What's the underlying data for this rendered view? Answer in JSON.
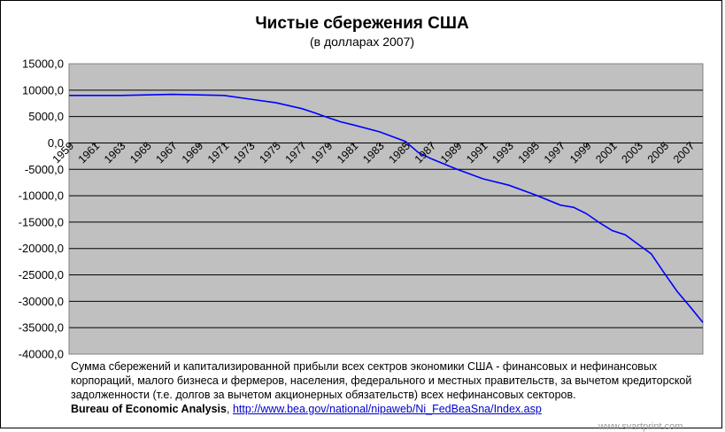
{
  "chart_data": {
    "type": "line",
    "title": "Чистые сбережения США",
    "subtitle": "(в долларах 2007)",
    "ylim": [
      -40000,
      15000
    ],
    "yticks": [
      "15000,0",
      "10000,0",
      "5000,0",
      "0,0",
      "-5000,0",
      "-10000,0",
      "-15000,0",
      "-20000,0",
      "-25000,0",
      "-30000,0",
      "-35000,0",
      "-40000,0"
    ],
    "ytick_values": [
      15000,
      10000,
      5000,
      0,
      -5000,
      -10000,
      -15000,
      -20000,
      -25000,
      -30000,
      -35000,
      -40000
    ],
    "xlim": [
      1959,
      2008
    ],
    "xticks": [
      "1959",
      "1961",
      "1963",
      "1965",
      "1967",
      "1969",
      "1971",
      "1973",
      "1975",
      "1977",
      "1979",
      "1981",
      "1983",
      "1985",
      "1987",
      "1989",
      "1991",
      "1993",
      "1995",
      "1997",
      "1999",
      "2001",
      "2003",
      "2005",
      "2007"
    ],
    "grid": true,
    "colors": {
      "plot_bg": "#c0c0c0",
      "line": "#0000ff",
      "grid": "#000000"
    },
    "series": [
      {
        "x": [
          1959,
          1961,
          1963,
          1965,
          1967,
          1969,
          1971,
          1973,
          1975,
          1977,
          1978,
          1979,
          1980,
          1981,
          1983,
          1985,
          1986,
          1987,
          1989,
          1991,
          1993,
          1995,
          1997,
          1998,
          1999,
          2000,
          2001,
          2002,
          2003,
          2004,
          2005,
          2006,
          2007,
          2008
        ],
        "values": [
          9000,
          9000,
          9000,
          9100,
          9200,
          9100,
          9000,
          8300,
          7600,
          6500,
          5700,
          4800,
          4000,
          3400,
          2100,
          300,
          -1800,
          -3000,
          -5000,
          -6800,
          -8000,
          -9800,
          -11800,
          -12200,
          -13400,
          -15100,
          -16600,
          -17400,
          -19200,
          -21000,
          -24600,
          -28100,
          -31000,
          -34000
        ]
      }
    ]
  },
  "caption": {
    "text": "Сумма сбережений и капитализированной прибыли всех сектров экономики США - финансовых и нефинансовых корпораций, малого бизнеса и фермеров, населения, федерального и местных правительств, за вычетом кредиторской задолженности (т.е. долгов за вычетом акционерных обязательств) всех нефинансовых секторов.",
    "source_label": "Bureau of Economic Analysis",
    "source_sep": ", ",
    "source_url": "http://www.bea.gov/national/nipaweb/Ni_FedBeaSna/Index.asp"
  },
  "watermark": "www.svartprint.com"
}
